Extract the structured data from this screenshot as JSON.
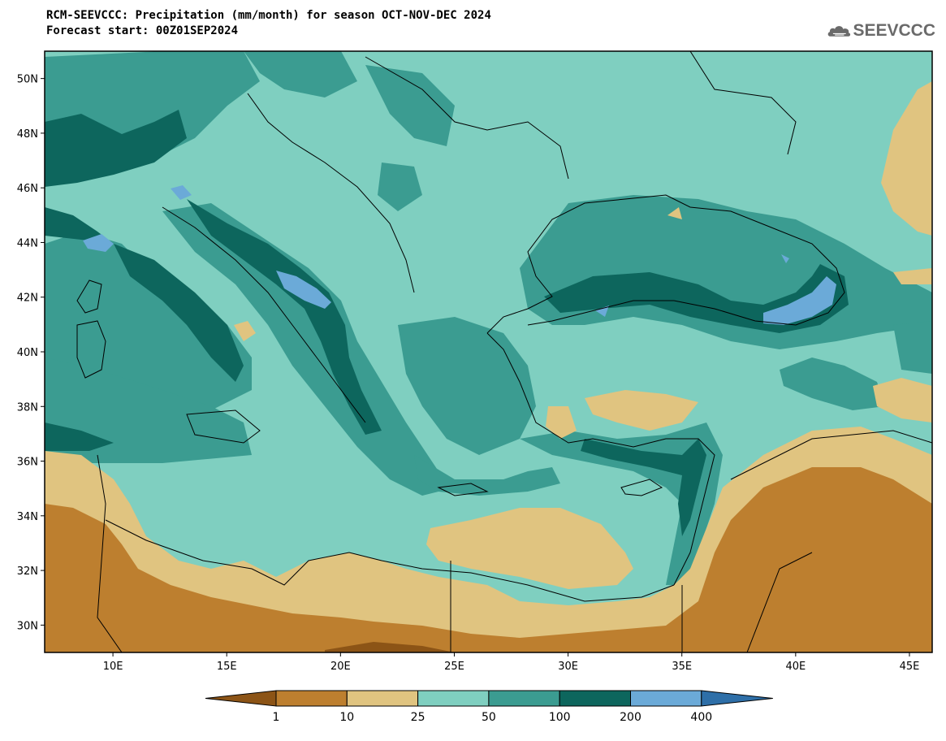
{
  "header": {
    "title": "RCM-SEEVCCC: Precipitation (mm/month) for season OCT-NOV-DEC 2024",
    "subtitle": "Forecast start: 00Z01SEP2024"
  },
  "logo": {
    "text": "SEEVCCC",
    "icon": "cloud-icon"
  },
  "map": {
    "lon_range": [
      7,
      46
    ],
    "lat_range": [
      29,
      51
    ],
    "lon_ticks": [
      "10E",
      "15E",
      "20E",
      "25E",
      "30E",
      "35E",
      "40E",
      "45E"
    ],
    "lat_ticks": [
      "50N",
      "48N",
      "46N",
      "44N",
      "42N",
      "40N",
      "38N",
      "36N",
      "34N",
      "32N",
      "30N"
    ]
  },
  "colorbar": {
    "labels": [
      "1",
      "10",
      "25",
      "50",
      "100",
      "200",
      "400"
    ],
    "colors": [
      "#8c5416",
      "#bd7f2f",
      "#e0c480",
      "#7fcfc0",
      "#3b9c91",
      "#0d665d",
      "#6baad8",
      "#2e6fa8"
    ]
  }
}
